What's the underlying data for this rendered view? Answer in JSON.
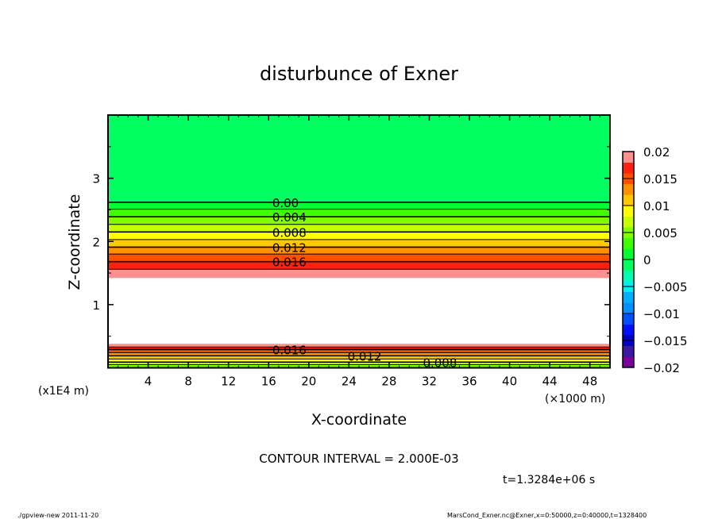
{
  "chart_data": {
    "type": "contour",
    "title": "disturbunce of Exner",
    "xlabel": "X-coordinate",
    "ylabel": "Z-coordinate",
    "x_unit": "(×1000 m)",
    "y_unit": "(x1E4 m)",
    "xlim": [
      0,
      50
    ],
    "ylim": [
      0,
      4
    ],
    "x_ticks": [
      "4",
      "8",
      "12",
      "16",
      "20",
      "24",
      "28",
      "32",
      "36",
      "40",
      "44",
      "48"
    ],
    "y_ticks": [
      "1",
      "2",
      "3"
    ],
    "contour_interval_text": "CONTOUR INTERVAL = 2.000E-03",
    "time_text": "t=1.3284e+06 s",
    "contour_labels": [
      "0.00",
      "0.004",
      "0.008",
      "0.012",
      "0.016"
    ],
    "lower_contour_labels": [
      "0.016",
      "0.012",
      "0.008"
    ],
    "upper_level_heights": [
      {
        "level": 0.0,
        "z": 2.62
      },
      {
        "level": 0.002,
        "z": 2.51
      },
      {
        "level": 0.004,
        "z": 2.39
      },
      {
        "level": 0.006,
        "z": 2.27
      },
      {
        "level": 0.008,
        "z": 2.15
      },
      {
        "level": 0.01,
        "z": 2.03
      },
      {
        "level": 0.012,
        "z": 1.91
      },
      {
        "level": 0.014,
        "z": 1.8
      },
      {
        "level": 0.016,
        "z": 1.68
      },
      {
        "level": 0.018,
        "z": 1.56
      },
      {
        "level": 0.02,
        "z": 1.42
      }
    ],
    "lower_level_heights": [
      {
        "level": 0.02,
        "z": 0.38
      },
      {
        "level": 0.018,
        "z": 0.33
      },
      {
        "level": 0.016,
        "z": 0.29
      },
      {
        "level": 0.014,
        "z": 0.24
      },
      {
        "level": 0.012,
        "z": 0.19
      },
      {
        "level": 0.01,
        "z": 0.14
      },
      {
        "level": 0.008,
        "z": 0.09
      },
      {
        "level": 0.006,
        "z": 0.05
      }
    ],
    "colorbar": {
      "range": [
        -0.02,
        0.02
      ],
      "step": 0.002,
      "tick_labels": [
        "0.02",
        "0.015",
        "0.01",
        "0.005",
        "0",
        "−0.005",
        "−0.01",
        "−0.015",
        "−0.02"
      ],
      "colors": [
        "#7a00a0",
        "#3c1aa0",
        "#0000c8",
        "#0010ff",
        "#0050ff",
        "#0090ff",
        "#00b0ff",
        "#00f0f0",
        "#00ffb0",
        "#00ff60",
        "#00ff30",
        "#40ff00",
        "#80ff00",
        "#c8ff00",
        "#ffff00",
        "#ffc800",
        "#ff9000",
        "#ff5000",
        "#ff2010",
        "#ff9090"
      ]
    }
  },
  "footer": {
    "left": "./gpview-new  2011-11-20",
    "right": "MarsCond_Exner.nc@Exner,x=0:50000,z=0:40000,t=1328400"
  }
}
